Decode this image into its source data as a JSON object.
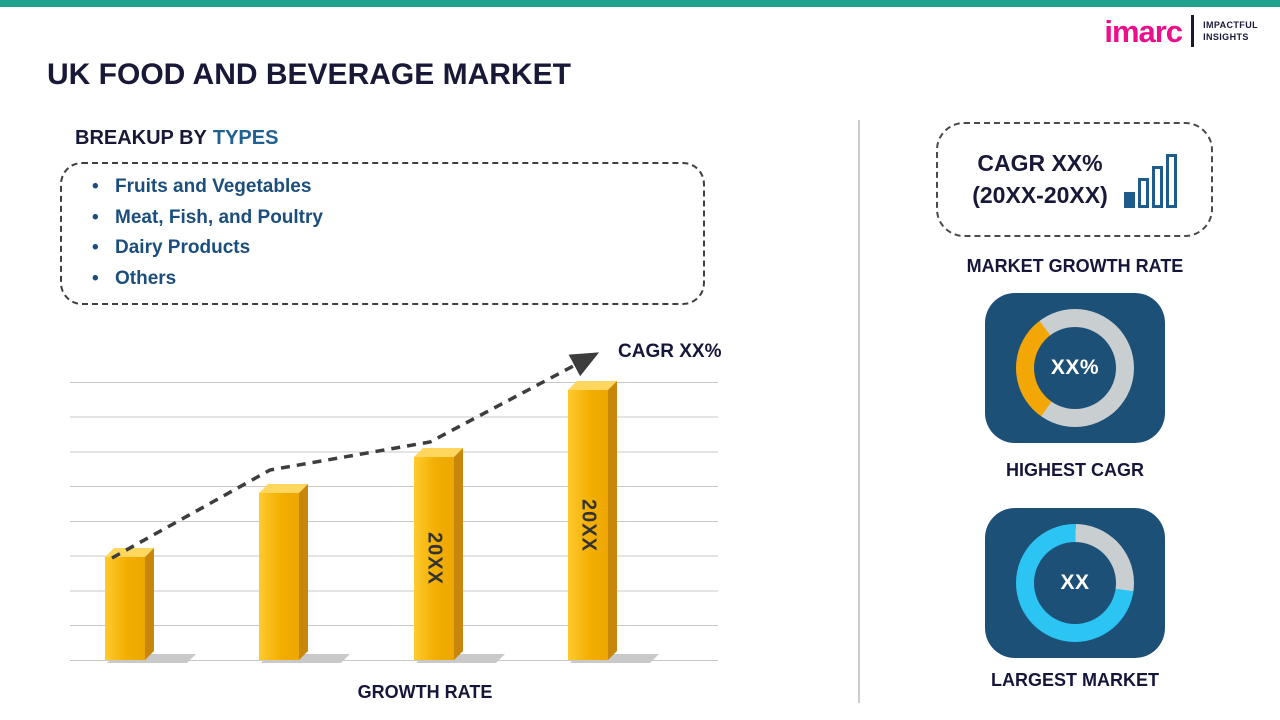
{
  "header": {
    "title": "UK FOOD AND BEVERAGE MARKET",
    "brand": {
      "name": "imarc",
      "tagline": [
        "IMPACTFUL",
        "INSIGHTS"
      ]
    }
  },
  "left": {
    "heading_prefix": "BREAKUP BY",
    "heading_highlight": "TYPES",
    "breakup_items": [
      "Fruits and Vegetables",
      "Meat, Fish, and Poultry",
      "Dairy Products",
      "Others"
    ]
  },
  "chart_data": [
    {
      "type": "bar",
      "categories": [
        "",
        "",
        "20XX",
        "20XX"
      ],
      "values": [
        38,
        62,
        75,
        100
      ],
      "title": "",
      "xlabel": "GROWTH RATE",
      "ylabel": "",
      "ylim": [
        0,
        100
      ],
      "grid": true,
      "legend": false,
      "bar_color": "#F5B301",
      "trend": "dashed ascending arrow",
      "annotations": [
        "CAGR XX%"
      ]
    },
    {
      "type": "pie",
      "variant": "donut",
      "label": "HIGHEST CAGR",
      "center_text": "XX%",
      "slices": [
        {
          "name": "highlight",
          "value": 30,
          "color": "#F3A705"
        },
        {
          "name": "remainder",
          "value": 70,
          "color": "#C9CED1"
        }
      ]
    },
    {
      "type": "pie",
      "variant": "donut",
      "label": "LARGEST MARKET",
      "center_text": "XX",
      "slices": [
        {
          "name": "highlight",
          "value": 73,
          "color": "#2BC4F3"
        },
        {
          "name": "remainder",
          "value": 27,
          "color": "#C9CED1"
        }
      ]
    }
  ],
  "right": {
    "cagr_card": {
      "line1": "CAGR XX%",
      "line2": "(20XX-20XX)"
    },
    "market_growth_label": "MARKET GROWTH RATE"
  },
  "colors": {
    "accent_teal": "#20A28E",
    "brand_pink": "#EC0F8B",
    "title_navy": "#181837",
    "steel_blue": "#1F6291",
    "list_blue": "#1B4E7D",
    "bar_gold": "#F5B301",
    "tile_navy": "#1D5077",
    "donut_gray": "#C9CED1",
    "donut_yellow": "#F3A705",
    "donut_cyan": "#2BC4F3"
  }
}
